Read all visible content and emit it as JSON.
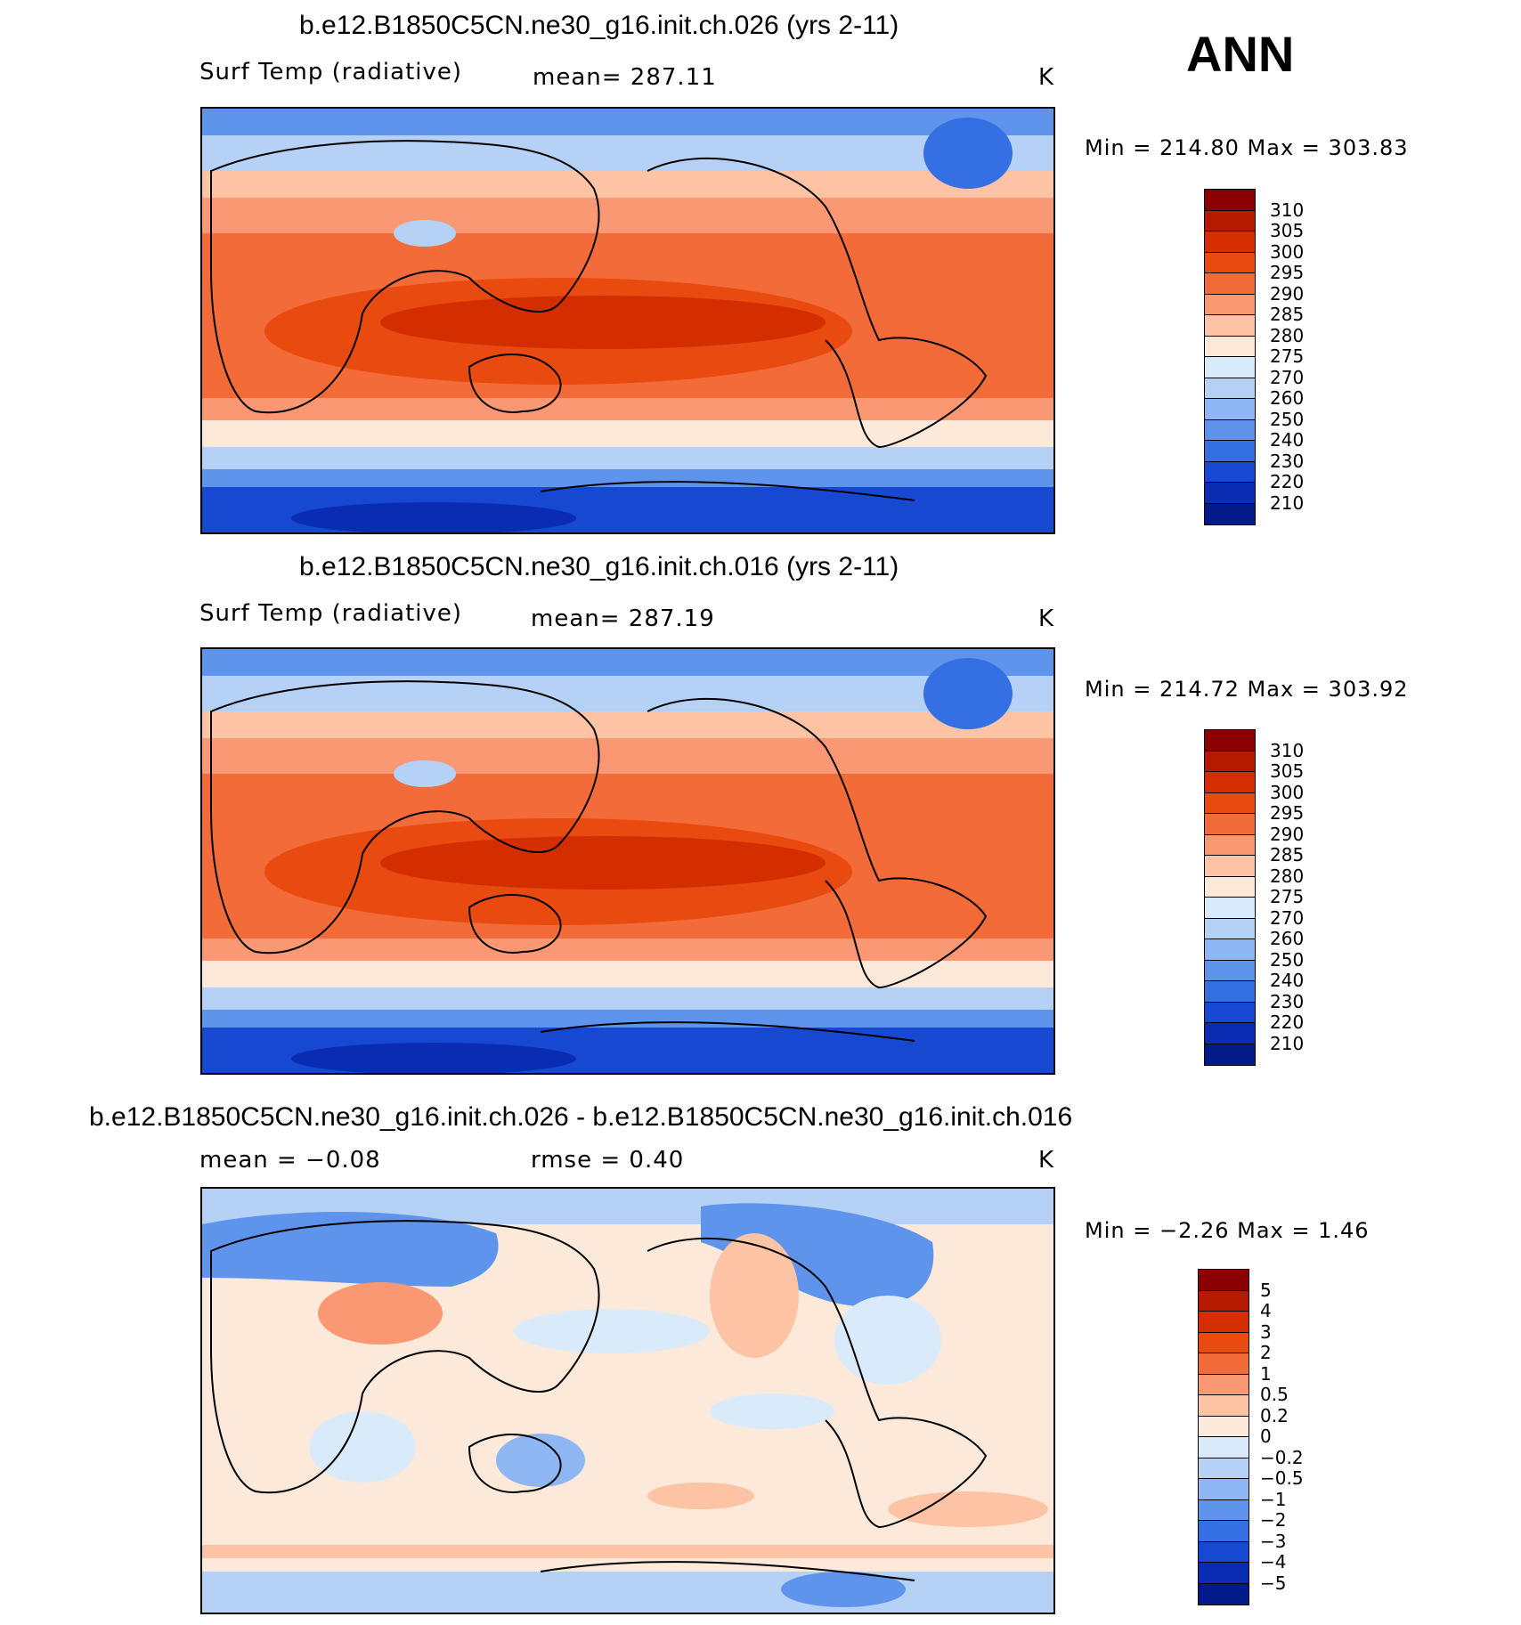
{
  "season": "ANN",
  "panels": [
    {
      "title": "b.e12.B1850C5CN.ne30_g16.init.ch.026 (yrs 2-11)",
      "variable": "Surf Temp (radiative)",
      "stat1": "mean= 287.11",
      "stat2": "",
      "units": "K",
      "minmax": "Min = 214.80 Max = 303.83",
      "colorbar": {
        "labels": [
          "310",
          "305",
          "300",
          "295",
          "290",
          "285",
          "280",
          "275",
          "270",
          "260",
          "250",
          "240",
          "230",
          "220",
          "210"
        ],
        "colors": [
          "#8b0000",
          "#b51a00",
          "#d42e00",
          "#e84a10",
          "#f46b3a",
          "#f99872",
          "#fcc4a4",
          "#fde9d9",
          "#d9eafb",
          "#b5d1f6",
          "#8db6f2",
          "#5f94ec",
          "#3570e2",
          "#1648d2",
          "#0a2cb2",
          "#021a8a"
        ]
      }
    },
    {
      "title": "b.e12.B1850C5CN.ne30_g16.init.ch.016 (yrs 2-11)",
      "variable": "Surf Temp (radiative)",
      "stat1": "mean= 287.19",
      "stat2": "",
      "units": "K",
      "minmax": "Min = 214.72 Max = 303.92",
      "colorbar": {
        "labels": [
          "310",
          "305",
          "300",
          "295",
          "290",
          "285",
          "280",
          "275",
          "270",
          "260",
          "250",
          "240",
          "230",
          "220",
          "210"
        ],
        "colors": [
          "#8b0000",
          "#b51a00",
          "#d42e00",
          "#e84a10",
          "#f46b3a",
          "#f99872",
          "#fcc4a4",
          "#fde9d9",
          "#d9eafb",
          "#b5d1f6",
          "#8db6f2",
          "#5f94ec",
          "#3570e2",
          "#1648d2",
          "#0a2cb2",
          "#021a8a"
        ]
      }
    },
    {
      "title": "b.e12.B1850C5CN.ne30_g16.init.ch.026 - b.e12.B1850C5CN.ne30_g16.init.ch.016",
      "variable": "",
      "stat1": "mean = −0.08",
      "stat2": "rmse = 0.40",
      "units": "K",
      "minmax": "Min = −2.26 Max = 1.46",
      "colorbar": {
        "labels": [
          "5",
          "4",
          "3",
          "2",
          "1",
          "0.5",
          "0.2",
          "0",
          "−0.2",
          "−0.5",
          "−1",
          "−2",
          "−3",
          "−4",
          "−5"
        ],
        "colors": [
          "#8b0000",
          "#b51a00",
          "#d42e00",
          "#e84a10",
          "#f46b3a",
          "#f99872",
          "#fcc4a4",
          "#fde9d9",
          "#d9eafb",
          "#b5d1f6",
          "#8db6f2",
          "#5f94ec",
          "#3570e2",
          "#1648d2",
          "#0a2cb2",
          "#021a8a"
        ]
      }
    }
  ]
}
